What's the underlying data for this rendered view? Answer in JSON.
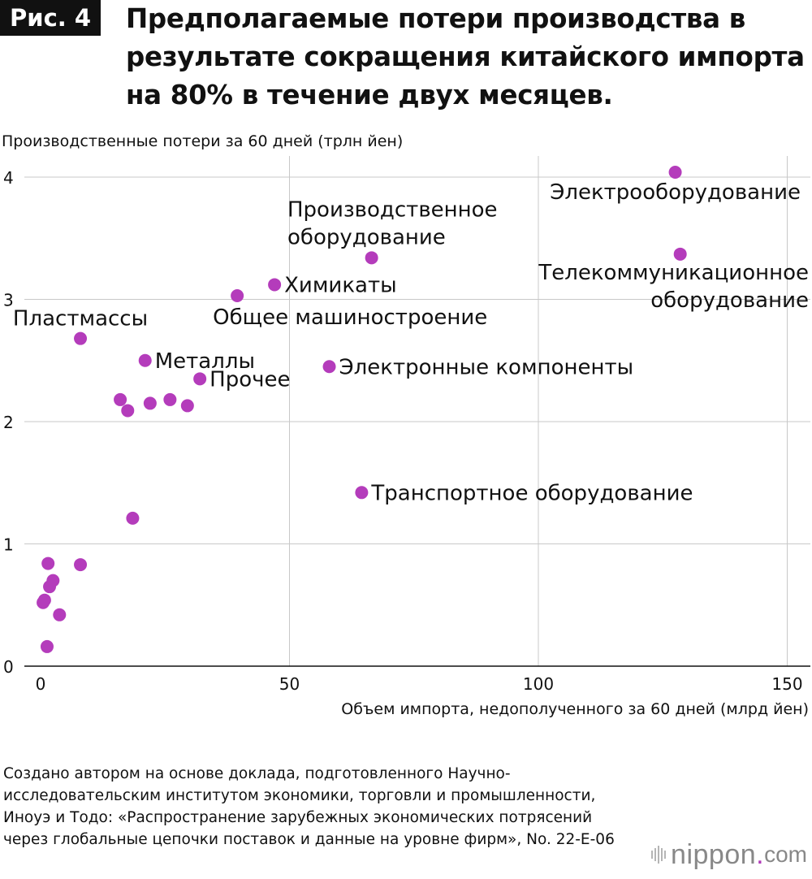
{
  "header": {
    "badge": "Рис. 4",
    "title": "Предполагаемые потери производства в результате сокращения китайского импорта на 80% в течение двух месяцев."
  },
  "source_note": "Создано автором на основе доклада, подготовленного Научно-исследовательским институтом экономики, торговли и промышленности, Иноуэ и Тодо: «Распространение зарубежных экономических потрясений через глобальные цепочки поставок и данные на уровне фирм», No. 22-E-06",
  "logo": {
    "name": "nippon",
    "dot": ".",
    "suffix": "com"
  },
  "colors": {
    "marker": "#b43cbb",
    "grid": "#c8c8c8",
    "axis": "#111111"
  },
  "chart_data": {
    "type": "scatter",
    "title": "Предполагаемые потери производства в результате сокращения китайского импорта на 80% в течение двух месяцев.",
    "xlabel": "Объем импорта, недополученного за 60 дней (млрд йен)",
    "ylabel": "Производственные потери за 60 дней (трлн йен)",
    "xlim": [
      0,
      155
    ],
    "ylim": [
      0,
      4.1
    ],
    "xticks": [
      0,
      50,
      100,
      150
    ],
    "yticks": [
      0,
      1,
      2,
      3,
      4
    ],
    "grid": "horizontal and vertical lines at major ticks",
    "points": [
      {
        "x": 127.5,
        "y": 4.04,
        "label": [
          "Электрооборудование"
        ],
        "anchor": "end",
        "align": "below"
      },
      {
        "x": 66.5,
        "y": 3.34,
        "label": [
          "Производственное",
          "оборудование"
        ],
        "anchor": "end",
        "align": "above"
      },
      {
        "x": 128.5,
        "y": 3.37,
        "label": [
          "Телекоммуникационное",
          "оборудование"
        ],
        "anchor": "end",
        "align": "below"
      },
      {
        "x": 47.0,
        "y": 3.12,
        "label": [
          "Химикаты"
        ],
        "anchor": "start",
        "align": "right"
      },
      {
        "x": 39.5,
        "y": 3.03,
        "label": [
          "Общее машиностроение"
        ],
        "anchor": "start",
        "align": "below"
      },
      {
        "x": 8.0,
        "y": 2.68,
        "label": [
          "Пластмассы"
        ],
        "anchor": "middle",
        "align": "above"
      },
      {
        "x": 21.0,
        "y": 2.5,
        "label": [
          "Металлы"
        ],
        "anchor": "start",
        "align": "right"
      },
      {
        "x": 58.0,
        "y": 2.45,
        "label": [
          "Электронные компоненты"
        ],
        "anchor": "start",
        "align": "right"
      },
      {
        "x": 32.0,
        "y": 2.35,
        "label": [
          "Прочее"
        ],
        "anchor": "start",
        "align": "right"
      },
      {
        "x": 64.5,
        "y": 1.42,
        "label": [
          "Транспортное оборудование"
        ],
        "anchor": "start",
        "align": "right"
      },
      {
        "x": 16.0,
        "y": 2.18
      },
      {
        "x": 17.5,
        "y": 2.09
      },
      {
        "x": 22.0,
        "y": 2.15
      },
      {
        "x": 26.0,
        "y": 2.18
      },
      {
        "x": 29.5,
        "y": 2.13
      },
      {
        "x": 18.5,
        "y": 1.21
      },
      {
        "x": 8.0,
        "y": 0.83
      },
      {
        "x": 1.5,
        "y": 0.84
      },
      {
        "x": 2.5,
        "y": 0.7
      },
      {
        "x": 1.8,
        "y": 0.65
      },
      {
        "x": 0.5,
        "y": 0.52
      },
      {
        "x": 0.8,
        "y": 0.54
      },
      {
        "x": 3.8,
        "y": 0.42
      },
      {
        "x": 1.3,
        "y": 0.16
      }
    ]
  }
}
